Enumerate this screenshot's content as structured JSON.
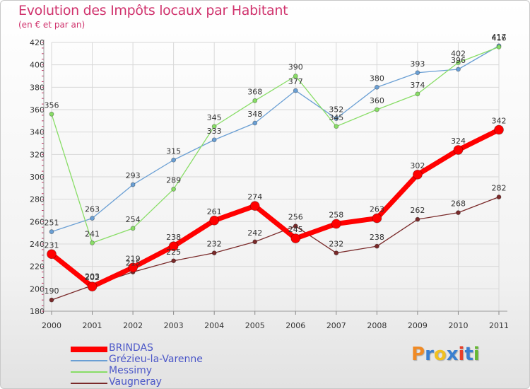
{
  "title": "Evolution des Impôts locaux par Habitant",
  "subtitle": "(en € et par an)",
  "logo_text": "Proxiti",
  "logo_colors": [
    "#f08a24",
    "#3a7fd0",
    "#f0c020",
    "#3a7fd0",
    "#e8402a",
    "#3a7fd0",
    "#66b832"
  ],
  "chart_data": {
    "type": "line",
    "title": "Evolution des Impôts locaux par Habitant",
    "subtitle": "(en € et par an)",
    "xlabel": "",
    "ylabel": "",
    "x": [
      "2000",
      "2001",
      "2002",
      "2003",
      "2004",
      "2005",
      "2006",
      "2007",
      "2008",
      "2009",
      "2010",
      "2011"
    ],
    "ylim": [
      180,
      420
    ],
    "yticks": [
      180,
      200,
      220,
      240,
      260,
      280,
      300,
      320,
      340,
      360,
      380,
      400,
      420
    ],
    "grid": true,
    "legend_position": "bottom-left",
    "series": [
      {
        "name": "BRINDAS",
        "color": "#ff0000",
        "values": [
          231,
          202,
          219,
          238,
          261,
          274,
          245,
          258,
          263,
          302,
          324,
          342
        ]
      },
      {
        "name": "Grézieu-la-Varenne",
        "color": "#6a9fd4",
        "values": [
          251,
          263,
          293,
          315,
          333,
          348,
          377,
          352,
          380,
          393,
          396,
          417
        ]
      },
      {
        "name": "Messimy",
        "color": "#88dd66",
        "values": [
          356,
          241,
          254,
          289,
          345,
          368,
          390,
          345,
          360,
          374,
          402,
          416
        ]
      },
      {
        "name": "Vaugneray",
        "color": "#7a2a2a",
        "values": [
          190,
          203,
          215,
          225,
          232,
          242,
          256,
          232,
          238,
          262,
          268,
          282
        ]
      }
    ]
  }
}
